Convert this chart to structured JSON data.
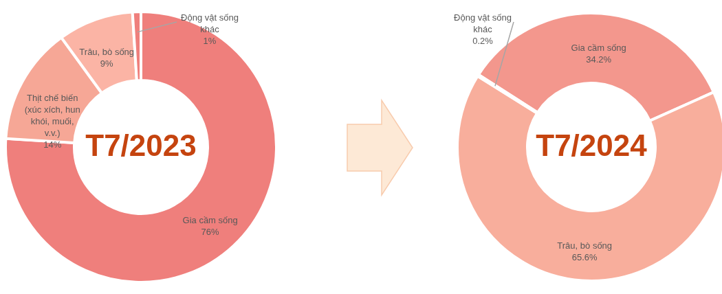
{
  "chart_data": [
    {
      "type": "donut",
      "title": "T7/2023",
      "categories": [
        "Gia cầm sống",
        "Thịt chế biến (xúc xích, hun khói, muối, v.v.)",
        "Trâu, bò sống",
        "Động vật sống khác"
      ],
      "values": [
        76,
        14,
        9,
        1
      ],
      "colors": [
        "#ef7f7c",
        "#f6a796",
        "#fbb4a5",
        "#ef7f7c"
      ],
      "value_labels": [
        "76%",
        "14%",
        "9%",
        "1%"
      ]
    },
    {
      "type": "donut",
      "title": "T7/2024",
      "categories": [
        "Gia cầm sống",
        "Trâu, bò sống",
        "Động vật sống khác"
      ],
      "values": [
        34.2,
        65.6,
        0.2
      ],
      "colors": [
        "#f3978d",
        "#f8ae9c",
        "#f3978d"
      ],
      "value_labels": [
        "34.2%",
        "65.6%",
        "0.2%"
      ]
    }
  ]
}
